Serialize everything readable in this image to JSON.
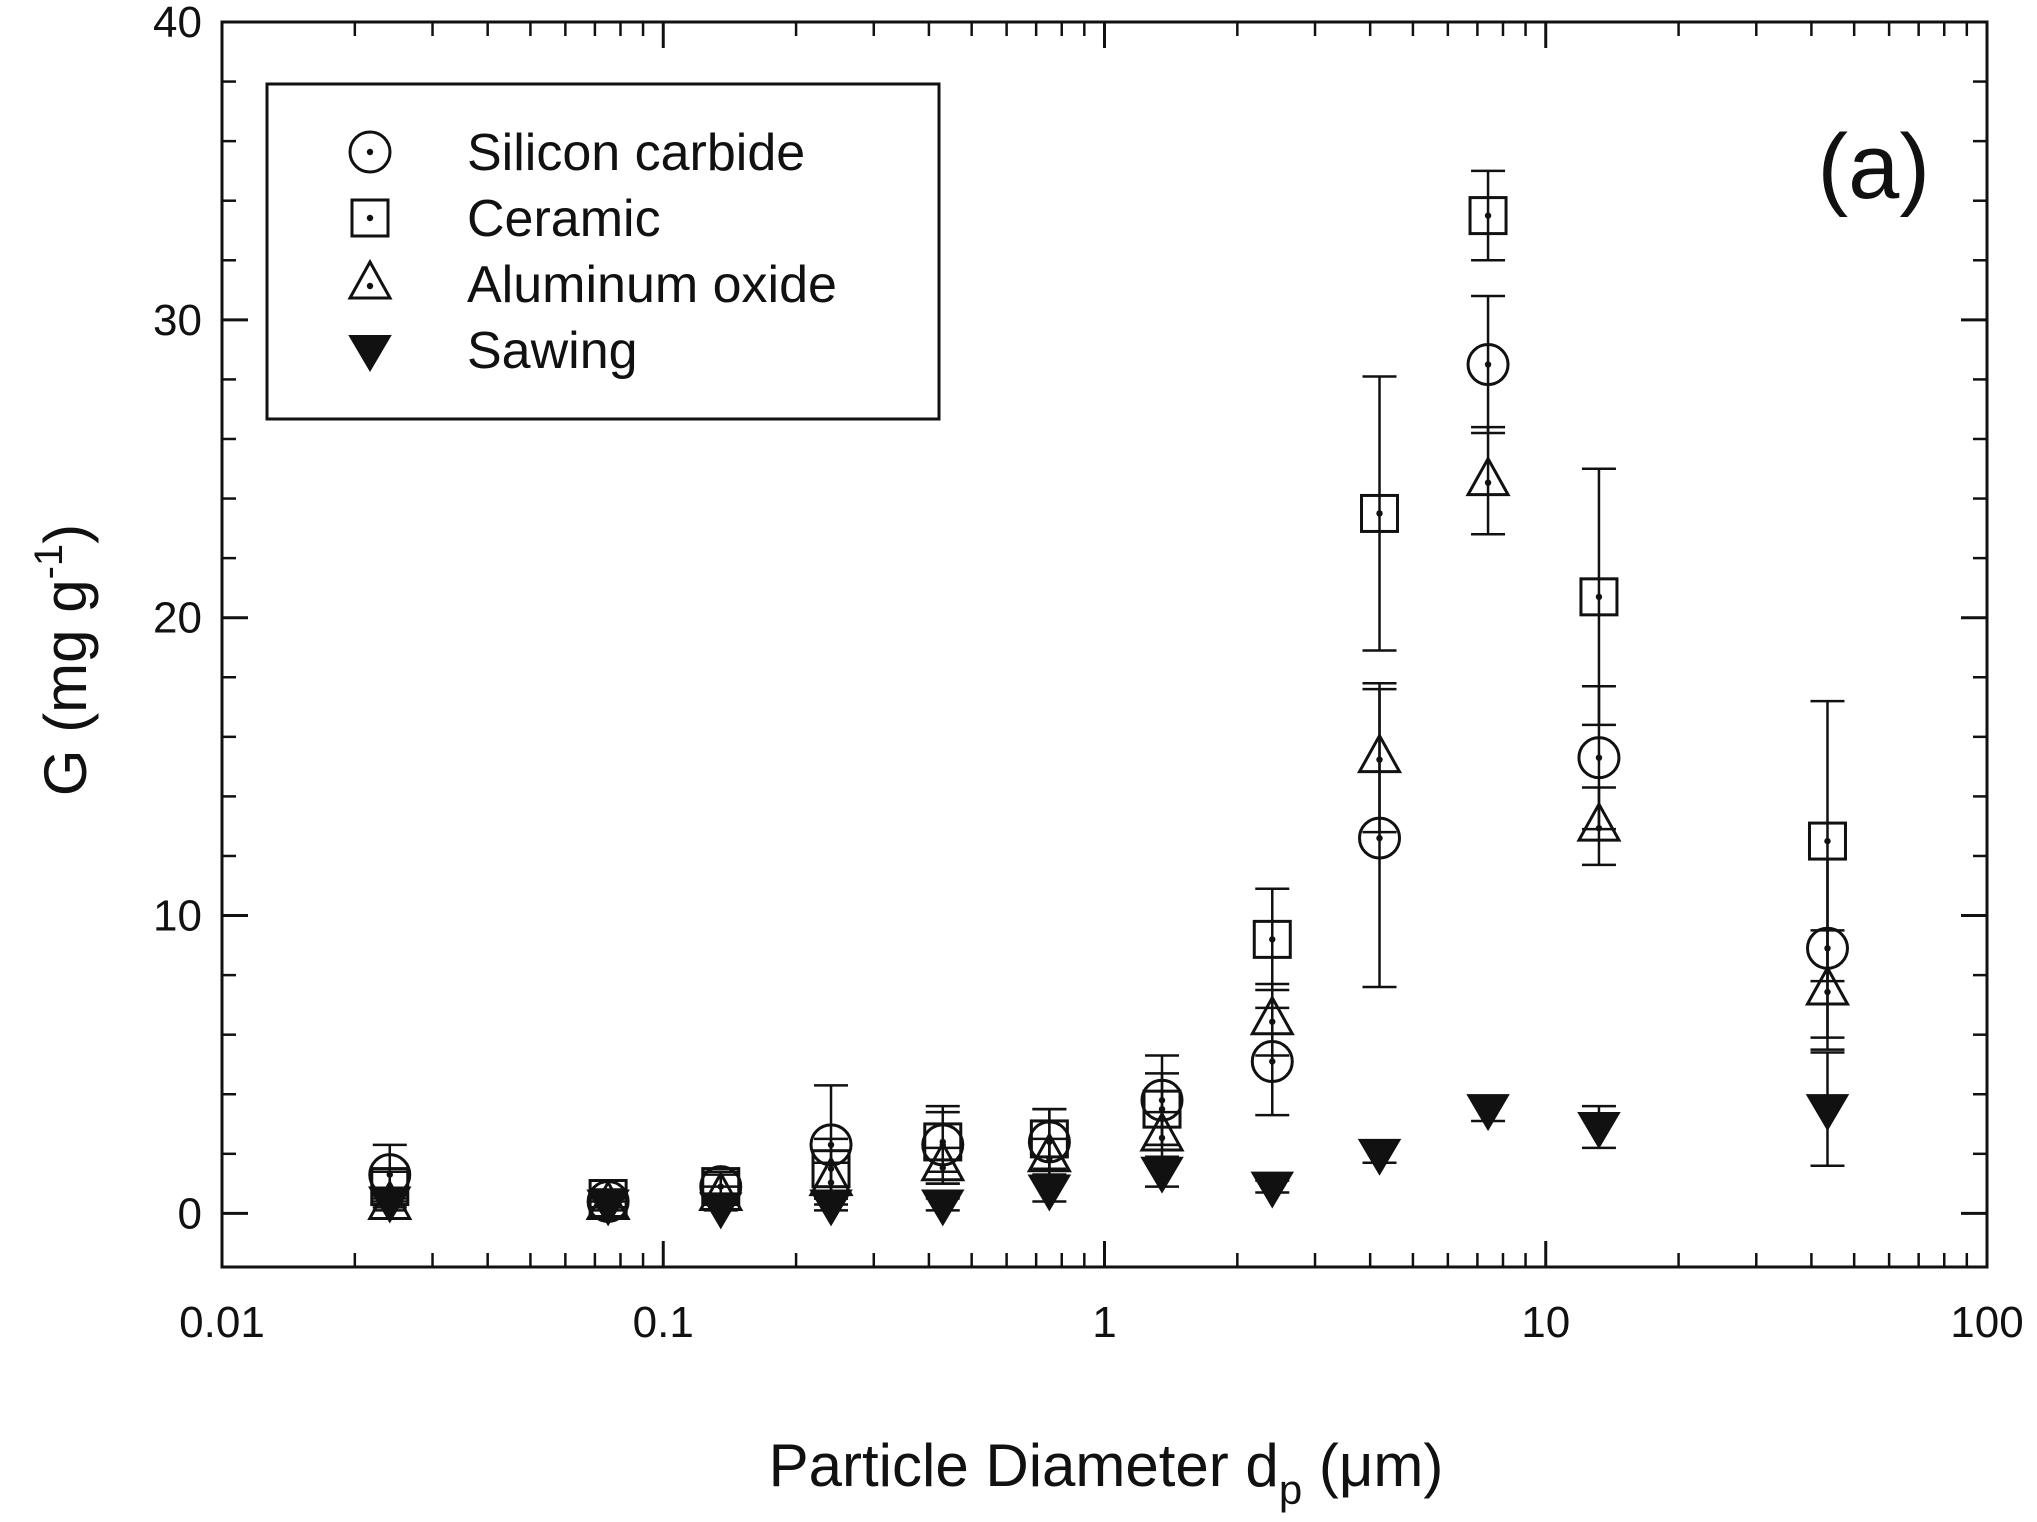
{
  "chart_data": {
    "type": "scatter",
    "panel_label": "(a)",
    "xlabel": "Particle Diameter d",
    "xlabel_sub": "p",
    "xlabel_unit": " (μm)",
    "ylabel": "G (mg g",
    "ylabel_sup": "-1",
    "ylabel_end": ")",
    "x_scale": "log",
    "xlim": [
      0.01,
      100
    ],
    "ylim": [
      -1.8,
      40
    ],
    "x_ticks": [
      0.01,
      0.1,
      1,
      10,
      100
    ],
    "x_tick_labels": [
      "0.01",
      "0.1",
      "1",
      "10",
      "100"
    ],
    "y_ticks": [
      0,
      10,
      20,
      30,
      40
    ],
    "y_tick_labels": [
      "0",
      "10",
      "20",
      "30",
      "40"
    ],
    "grid": false,
    "legend_position": "top-left",
    "x": [
      0.024,
      0.075,
      0.135,
      0.24,
      0.43,
      0.75,
      1.35,
      2.4,
      4.2,
      7.4,
      13.2,
      43.5
    ],
    "series": [
      {
        "name": "Silicon carbide",
        "marker": "circle-dot",
        "values": [
          1.3,
          0.4,
          0.9,
          2.3,
          2.3,
          2.4,
          3.8,
          5.1,
          12.6,
          28.5,
          15.3,
          8.9
        ],
        "err": [
          1.0,
          0.2,
          0.5,
          2.0,
          1.3,
          1.1,
          1.5,
          1.8,
          5.0,
          2.3,
          2.4,
          3.0
        ]
      },
      {
        "name": "Ceramic",
        "marker": "square-dot",
        "values": [
          0.9,
          0.5,
          0.9,
          1.5,
          2.4,
          2.5,
          3.5,
          9.2,
          23.5,
          33.5,
          20.7,
          12.5
        ],
        "err": [
          0.5,
          0.3,
          0.4,
          1.0,
          1.0,
          1.0,
          1.2,
          1.7,
          4.6,
          1.5,
          4.3,
          4.7
        ]
      },
      {
        "name": "Aluminum oxide",
        "marker": "triangle-dot",
        "values": [
          0.3,
          0.3,
          0.6,
          1.1,
          1.6,
          1.9,
          2.6,
          6.5,
          15.3,
          24.6,
          13.0,
          7.5
        ],
        "err": [
          0.2,
          0.2,
          0.3,
          0.6,
          0.6,
          0.6,
          0.8,
          1.2,
          2.5,
          1.8,
          1.3,
          2.0
        ]
      },
      {
        "name": "Sawing",
        "marker": "triangle-down-filled",
        "values": [
          0.4,
          0.3,
          0.2,
          0.3,
          0.3,
          0.8,
          1.4,
          0.9,
          2.0,
          3.5,
          2.9,
          3.5
        ],
        "err": [
          0.2,
          0.1,
          0.1,
          0.2,
          0.2,
          0.4,
          0.5,
          0.2,
          0.3,
          0.4,
          0.7,
          1.9
        ]
      }
    ]
  }
}
